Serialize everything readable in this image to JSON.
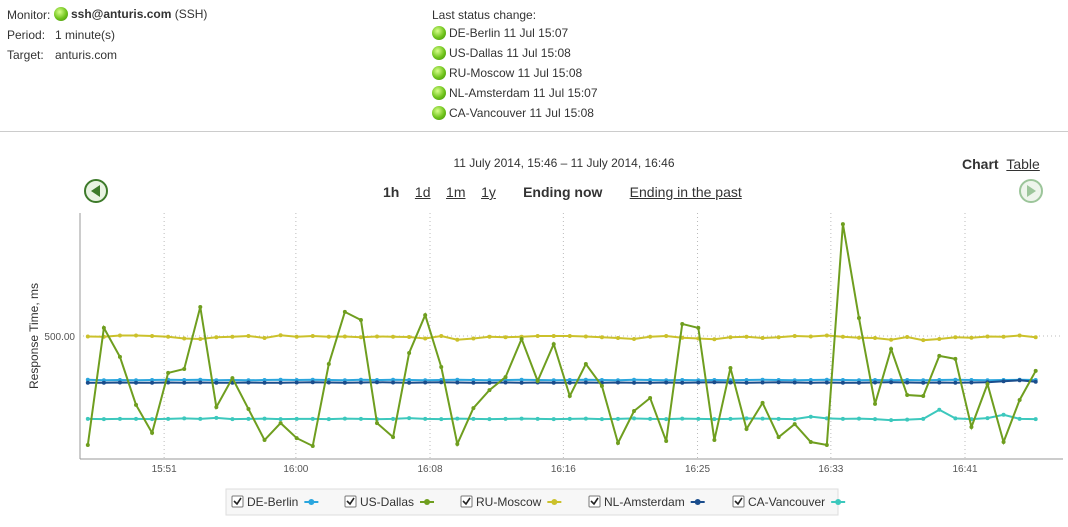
{
  "monitor": {
    "label": "Monitor:",
    "name": "ssh@anturis.com",
    "protocol": "(SSH)"
  },
  "period": {
    "label": "Period:",
    "value": "1 minute(s)"
  },
  "target": {
    "label": "Target:",
    "value": "anturis.com"
  },
  "status": {
    "label": "Last status change:",
    "items": [
      "DE-Berlin 11 Jul 15:07",
      "US-Dallas 11 Jul 15:08",
      "RU-Moscow 11 Jul 15:08",
      "NL-Amsterdam 11 Jul 15:07",
      "CA-Vancouver 11 Jul 15:08"
    ]
  },
  "view_tabs": [
    "Chart",
    "Table"
  ],
  "ranges": [
    "1h",
    "1d",
    "1m",
    "1y"
  ],
  "ending": [
    "Ending now",
    "Ending in the past"
  ],
  "chart_data": {
    "type": "line",
    "title": "11 July 2014, 15:46 – 11 July 2014, 16:46",
    "y_label": "Response Time, ms",
    "x": [
      0,
      1,
      2,
      3,
      4,
      5,
      6,
      7,
      8,
      9,
      10,
      11,
      12,
      13,
      14,
      15,
      16,
      17,
      18,
      19,
      20,
      21,
      22,
      23,
      24,
      25,
      26,
      27,
      28,
      29,
      30,
      31,
      32,
      33,
      34,
      35,
      36,
      37,
      38,
      39,
      40,
      41,
      42,
      43,
      44,
      45,
      46,
      47,
      48,
      49,
      50,
      51,
      52,
      53,
      54,
      55,
      56,
      57,
      58,
      59
    ],
    "xlim": [
      -0.3,
      60.7
    ],
    "xticks": [
      {
        "value": 4.75,
        "label": "15:51"
      },
      {
        "value": 12.95,
        "label": "16:00"
      },
      {
        "value": 21.3,
        "label": "16:08"
      },
      {
        "value": 29.6,
        "label": "16:16"
      },
      {
        "value": 37.95,
        "label": "16:25"
      },
      {
        "value": 46.25,
        "label": "16:33"
      },
      {
        "value": 54.6,
        "label": "16:41"
      }
    ],
    "ylim": [
      0,
      1000
    ],
    "yticks": [
      {
        "value": 500,
        "label": "500.00"
      }
    ],
    "grid": true,
    "series": [
      {
        "name": "DE-Berlin",
        "color": "#2ba6de",
        "values": [
          322,
          320,
          321,
          320,
          321,
          322,
          321,
          322,
          320,
          321,
          320,
          321,
          322,
          321,
          322,
          321,
          320,
          322,
          321,
          322,
          321,
          320,
          321,
          322,
          321,
          320,
          321,
          322,
          321,
          320,
          321,
          322,
          321,
          320,
          322,
          321,
          320,
          321,
          320,
          321,
          320,
          321,
          322,
          321,
          320,
          321,
          322,
          321,
          320,
          321,
          320,
          321,
          320,
          321,
          322,
          321,
          320,
          321,
          322,
          321
        ]
      },
      {
        "name": "US-Dallas",
        "color": "#6f9e1f",
        "values": [
          57,
          533,
          415,
          220,
          106,
          350,
          366,
          618,
          211,
          329,
          203,
          77,
          146,
          85,
          53,
          386,
          598,
          565,
          146,
          89,
          431,
          585,
          374,
          61,
          207,
          280,
          333,
          488,
          317,
          467,
          256,
          386,
          297,
          65,
          195,
          248,
          73,
          549,
          533,
          77,
          370,
          122,
          228,
          89,
          142,
          69,
          57,
          955,
          573,
          224,
          447,
          260,
          256,
          419,
          407,
          130,
          305,
          69,
          240,
          358
        ]
      },
      {
        "name": "RU-Moscow",
        "color": "#cbc12b",
        "values": [
          498,
          497,
          502,
          502,
          500,
          497,
          490,
          488,
          495,
          497,
          500,
          492,
          503,
          497,
          500,
          497,
          498,
          495,
          498,
          497,
          496,
          490,
          500,
          485,
          490,
          497,
          495,
          497,
          500,
          500,
          500,
          498,
          495,
          492,
          488,
          497,
          500,
          493,
          490,
          487,
          495,
          497,
          492,
          495,
          500,
          498,
          502,
          497,
          493,
          492,
          485,
          496,
          483,
          488,
          495,
          493,
          498,
          497,
          502,
          495
        ]
      },
      {
        "name": "NL-Amsterdam",
        "color": "#1a4d8c",
        "values": [
          310,
          310,
          311,
          310,
          310,
          311,
          310,
          311,
          310,
          310,
          311,
          310,
          310,
          311,
          312,
          311,
          310,
          311,
          312,
          311,
          310,
          311,
          312,
          311,
          310,
          310,
          311,
          310,
          311,
          310,
          310,
          311,
          310,
          311,
          310,
          310,
          311,
          310,
          311,
          312,
          311,
          310,
          311,
          312,
          311,
          310,
          311,
          310,
          310,
          311,
          312,
          311,
          310,
          311,
          310,
          311,
          312,
          316,
          320,
          314
        ]
      },
      {
        "name": "CA-Vancouver",
        "color": "#3cc8bd",
        "values": [
          163,
          162,
          163,
          163,
          162,
          163,
          165,
          163,
          167,
          162,
          163,
          164,
          162,
          163,
          163,
          162,
          164,
          163,
          162,
          163,
          166,
          163,
          162,
          164,
          163,
          162,
          163,
          164,
          163,
          162,
          163,
          164,
          162,
          163,
          165,
          163,
          162,
          164,
          163,
          162,
          163,
          165,
          164,
          163,
          162,
          172,
          165,
          163,
          164,
          162,
          158,
          160,
          163,
          200,
          165,
          162,
          166,
          180,
          163,
          162
        ]
      }
    ]
  }
}
